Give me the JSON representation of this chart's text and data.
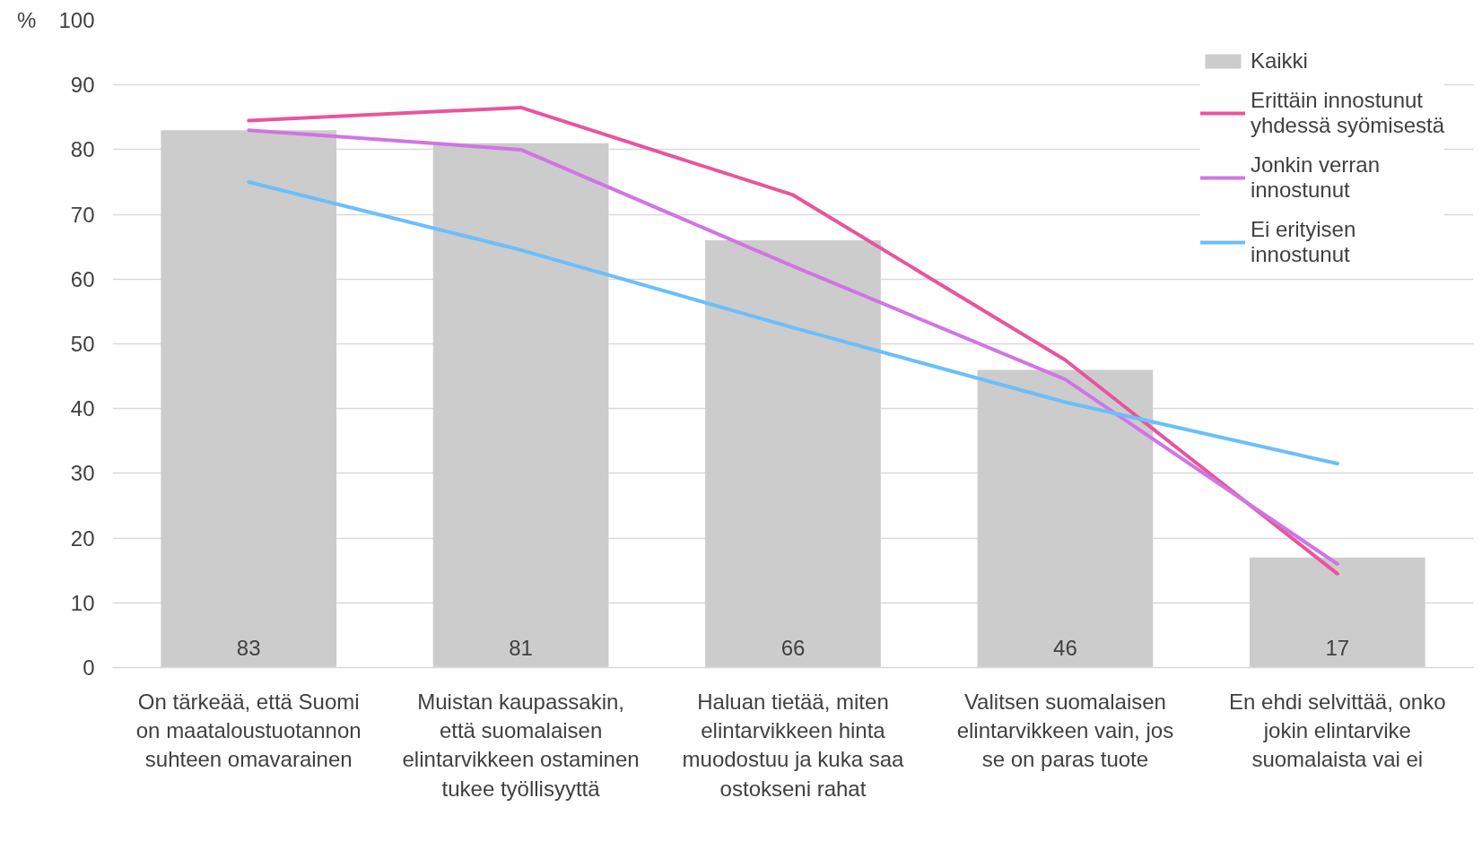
{
  "chart_data": {
    "type": "bar",
    "ylabel": "%",
    "categories": [
      "On tärkeää, että Suomi on maataloustuotannon suhteen omavarainen",
      "Muistan kaupassakin, että suomalaisen elintarvikkeen ostaminen tukee työllisyyttä",
      "Haluan tietää, miten elintarvikkeen hinta muodostuu ja kuka saa ostokseni rahat",
      "Valitsen suomalaisen elintarvikkeen vain, jos se on paras tuote",
      "En ehdi selvittää, onko jokin elintarvike suomalaista vai ei"
    ],
    "ylim": [
      0,
      100
    ],
    "yticks": [
      0,
      10,
      20,
      30,
      40,
      50,
      60,
      70,
      80,
      90,
      100
    ],
    "grid": "y",
    "legend": "top right",
    "line_style": "solid",
    "series": [
      {
        "name": "Kaikki",
        "color": "#cccccc",
        "values": [
          83,
          81,
          66,
          46,
          17
        ],
        "value_labels": [
          "83",
          "81",
          "66",
          "46",
          "17"
        ]
      },
      {
        "name": "Erittäin innostunut yhdessä syömisestä",
        "type": "line",
        "color": "#e8559b",
        "values": [
          84.5,
          86.5,
          73,
          47.5,
          14.5
        ]
      },
      {
        "name": "Jonkin verran innostunut",
        "type": "line",
        "color": "#d174e4",
        "values": [
          83,
          80,
          62,
          44.5,
          16
        ]
      },
      {
        "name": "Ei erityisen innostunut",
        "type": "line",
        "color": "#6bbffa",
        "values": [
          75,
          64.5,
          52.5,
          41,
          31.5
        ]
      }
    ]
  }
}
